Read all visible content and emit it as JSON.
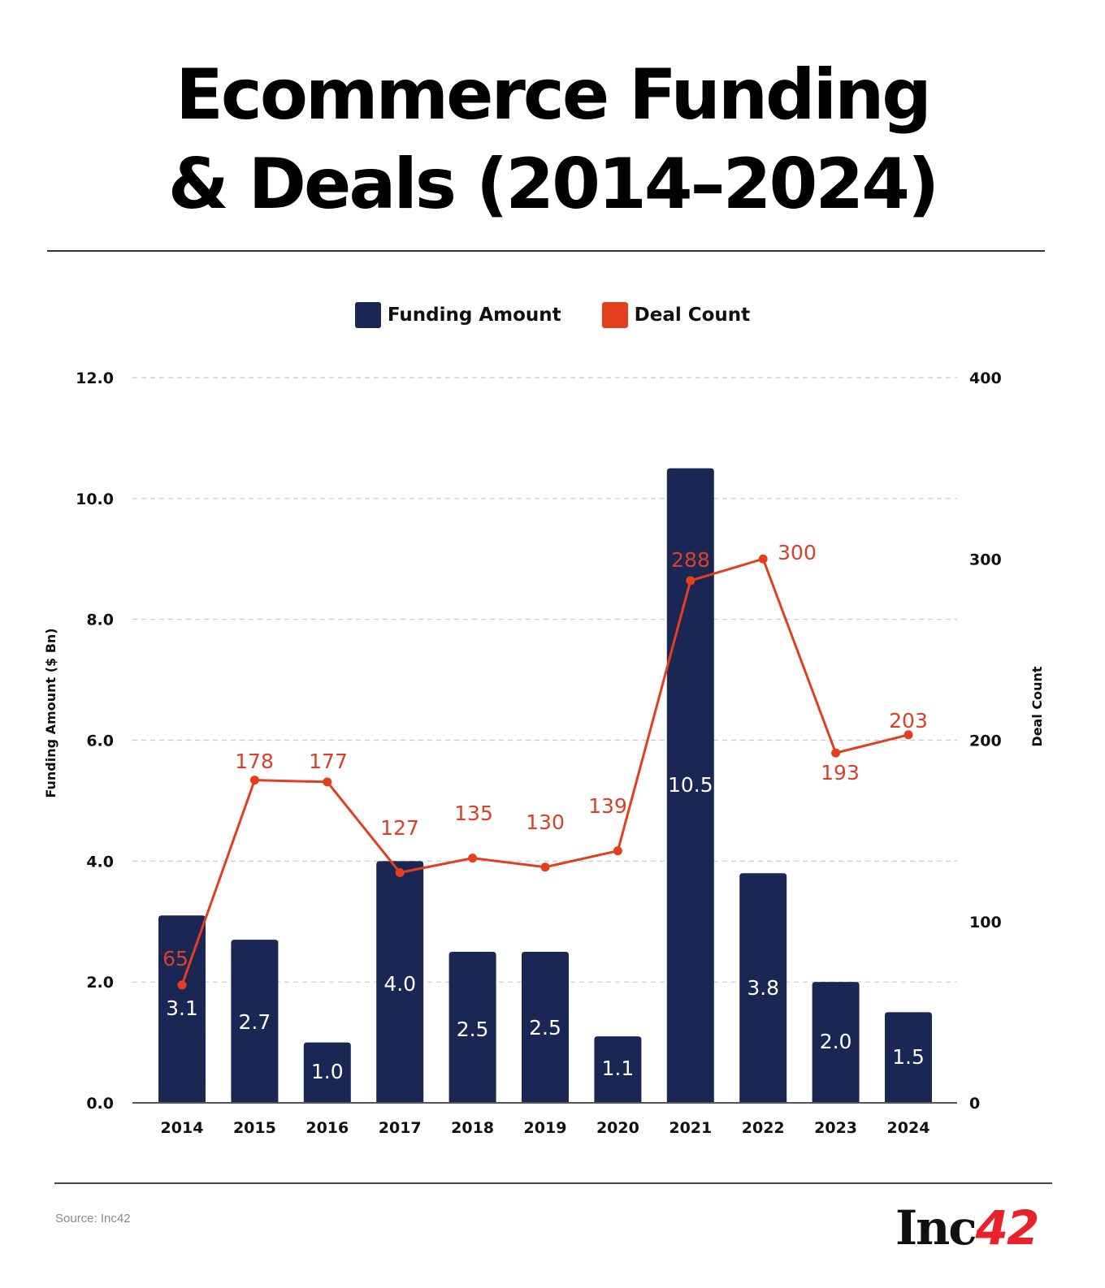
{
  "title_lines": [
    "Ecommerce Funding",
    "& Deals (2014–2024)"
  ],
  "legend": [
    {
      "label": "Funding Amount",
      "color": "#1a2755"
    },
    {
      "label": "Deal Count",
      "color": "#e53e1e"
    }
  ],
  "source": "Source: Inc42",
  "logo": {
    "text": "Inc",
    "number": "42"
  },
  "chart_data": {
    "type": "bar+line",
    "title": "Ecommerce Funding & Deals (2014–2024)",
    "categories": [
      "2014",
      "2015",
      "2016",
      "2017",
      "2018",
      "2019",
      "2020",
      "2021",
      "2022",
      "2023",
      "2024"
    ],
    "series": [
      {
        "name": "Funding Amount",
        "type": "bar",
        "axis": "left",
        "color": "#1a2755",
        "values": [
          3.1,
          2.7,
          1.0,
          4.0,
          2.5,
          2.5,
          1.1,
          10.5,
          3.8,
          2.0,
          1.5
        ],
        "labels": [
          "3.1",
          "2.7",
          "1.0",
          "4.0",
          "2.5",
          "2.5",
          "1.1",
          "10.5",
          "3.8",
          "2.0",
          "1.5"
        ]
      },
      {
        "name": "Deal Count",
        "type": "line",
        "axis": "right",
        "color": "#e53e1e",
        "values": [
          65,
          178,
          177,
          127,
          135,
          130,
          139,
          288,
          300,
          193,
          203
        ],
        "labels": [
          "65",
          "178",
          "177",
          "127",
          "135",
          "130",
          "139",
          "288",
          "300",
          "193",
          "203"
        ]
      }
    ],
    "ylabel_left": "Funding Amount ($ Bn)",
    "ylabel_right": "Deal Count",
    "ylim_left": [
      0,
      12
    ],
    "ylim_right": [
      0,
      400
    ],
    "yticks_left": [
      "0.0",
      "2.0",
      "4.0",
      "6.0",
      "8.0",
      "10.0",
      "12.0"
    ],
    "yticks_right": [
      "0",
      "100",
      "200",
      "300",
      "400"
    ],
    "grid": true,
    "legend_position": "top-center"
  }
}
